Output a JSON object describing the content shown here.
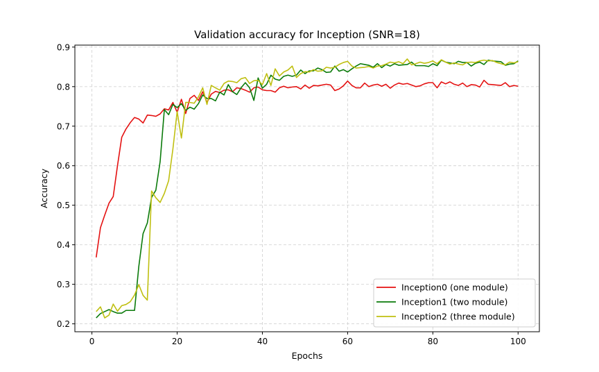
{
  "chart_data": {
    "type": "line",
    "title": "Validation accuracy for Inception (SNR=18)",
    "xlabel": "Epochs",
    "ylabel": "Accuracy",
    "xlim": [
      -4,
      105
    ],
    "ylim": [
      0.18,
      0.905
    ],
    "xticks": [
      0,
      20,
      40,
      60,
      80,
      100
    ],
    "yticks": [
      0.2,
      0.3,
      0.4,
      0.5,
      0.6,
      0.7,
      0.8,
      0.9
    ],
    "xtick_labels": [
      "0",
      "20",
      "40",
      "60",
      "80",
      "100"
    ],
    "ytick_labels": [
      "0.2",
      "0.3",
      "0.4",
      "0.5",
      "0.6",
      "0.7",
      "0.8",
      "0.9"
    ],
    "grid": true,
    "legend_position": "lower-right",
    "series": [
      {
        "name": "Inception0 (one module)",
        "color": "#e41010",
        "values": [
          0.368,
          0.443,
          0.475,
          0.505,
          0.522,
          0.6,
          0.672,
          0.693,
          0.709,
          0.722,
          0.718,
          0.708,
          0.728,
          0.727,
          0.725,
          0.731,
          0.744,
          0.741,
          0.76,
          0.735,
          0.768,
          0.732,
          0.77,
          0.778,
          0.765,
          0.787,
          0.76,
          0.781,
          0.788,
          0.785,
          0.791,
          0.792,
          0.787,
          0.797,
          0.795,
          0.791,
          0.786,
          0.797,
          0.799,
          0.792,
          0.79,
          0.79,
          0.786,
          0.797,
          0.801,
          0.797,
          0.799,
          0.8,
          0.794,
          0.804,
          0.796,
          0.803,
          0.802,
          0.804,
          0.806,
          0.804,
          0.79,
          0.794,
          0.802,
          0.814,
          0.803,
          0.797,
          0.797,
          0.809,
          0.8,
          0.804,
          0.806,
          0.801,
          0.806,
          0.796,
          0.804,
          0.809,
          0.806,
          0.808,
          0.804,
          0.8,
          0.802,
          0.807,
          0.81,
          0.81,
          0.797,
          0.812,
          0.807,
          0.812,
          0.806,
          0.803,
          0.809,
          0.8,
          0.805,
          0.804,
          0.799,
          0.816,
          0.806,
          0.805,
          0.804,
          0.803,
          0.81,
          0.8,
          0.803,
          0.801
        ]
      },
      {
        "name": "Inception1 (two module)",
        "color": "#0a7a0a",
        "values": [
          0.215,
          0.226,
          0.231,
          0.236,
          0.231,
          0.227,
          0.227,
          0.234,
          0.234,
          0.234,
          0.345,
          0.428,
          0.455,
          0.52,
          0.538,
          0.61,
          0.742,
          0.729,
          0.755,
          0.747,
          0.757,
          0.74,
          0.748,
          0.743,
          0.757,
          0.779,
          0.77,
          0.77,
          0.764,
          0.786,
          0.779,
          0.805,
          0.787,
          0.78,
          0.797,
          0.81,
          0.797,
          0.765,
          0.822,
          0.796,
          0.806,
          0.829,
          0.819,
          0.816,
          0.826,
          0.829,
          0.826,
          0.829,
          0.842,
          0.833,
          0.84,
          0.84,
          0.847,
          0.843,
          0.836,
          0.837,
          0.852,
          0.839,
          0.843,
          0.837,
          0.845,
          0.852,
          0.858,
          0.856,
          0.854,
          0.849,
          0.858,
          0.848,
          0.856,
          0.852,
          0.858,
          0.854,
          0.855,
          0.856,
          0.862,
          0.853,
          0.853,
          0.853,
          0.851,
          0.858,
          0.853,
          0.867,
          0.862,
          0.86,
          0.858,
          0.864,
          0.861,
          0.861,
          0.852,
          0.859,
          0.862,
          0.856,
          0.867,
          0.865,
          0.864,
          0.863,
          0.854,
          0.857,
          0.858,
          0.865
        ]
      },
      {
        "name": "Inception2 (three module)",
        "color": "#bfbf10",
        "values": [
          0.231,
          0.243,
          0.215,
          0.222,
          0.25,
          0.232,
          0.246,
          0.249,
          0.256,
          0.273,
          0.299,
          0.272,
          0.26,
          0.536,
          0.519,
          0.507,
          0.53,
          0.562,
          0.642,
          0.737,
          0.67,
          0.76,
          0.76,
          0.758,
          0.774,
          0.797,
          0.755,
          0.803,
          0.797,
          0.791,
          0.808,
          0.814,
          0.813,
          0.81,
          0.82,
          0.823,
          0.808,
          0.815,
          0.816,
          0.805,
          0.833,
          0.803,
          0.845,
          0.827,
          0.837,
          0.842,
          0.852,
          0.823,
          0.833,
          0.838,
          0.837,
          0.843,
          0.839,
          0.84,
          0.849,
          0.847,
          0.849,
          0.856,
          0.861,
          0.864,
          0.852,
          0.847,
          0.848,
          0.849,
          0.851,
          0.847,
          0.852,
          0.853,
          0.857,
          0.862,
          0.86,
          0.863,
          0.858,
          0.87,
          0.855,
          0.858,
          0.862,
          0.859,
          0.861,
          0.865,
          0.858,
          0.868,
          0.862,
          0.857,
          0.86,
          0.857,
          0.855,
          0.861,
          0.862,
          0.861,
          0.865,
          0.867,
          0.865,
          0.866,
          0.861,
          0.858,
          0.855,
          0.862,
          0.86,
          0.863
        ]
      }
    ]
  }
}
